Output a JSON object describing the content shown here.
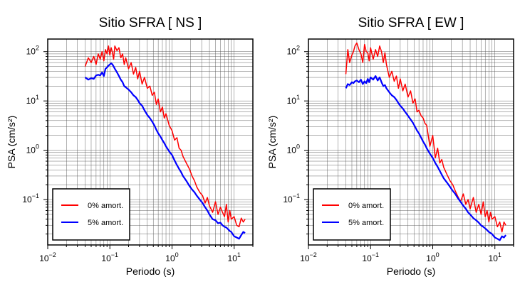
{
  "chart_data": [
    {
      "type": "line",
      "title": "Sitio SFRA [ NS ]",
      "xlabel": "Periodo (s)",
      "ylabel": "PSA (cm/s²)",
      "xscale": "log",
      "yscale": "log",
      "xlim": [
        0.01,
        20
      ],
      "ylim": [
        0.012,
        180
      ],
      "xticks": [
        {
          "value": 0.01,
          "base": "10",
          "exp": "−2"
        },
        {
          "value": 0.1,
          "base": "10",
          "exp": "−1"
        },
        {
          "value": 1,
          "base": "10",
          "exp": "0"
        },
        {
          "value": 10,
          "base": "10",
          "exp": "1"
        }
      ],
      "yticks": [
        {
          "value": 0.1,
          "base": "10",
          "exp": "−1"
        },
        {
          "value": 1,
          "base": "10",
          "exp": "0"
        },
        {
          "value": 10,
          "base": "10",
          "exp": "1"
        },
        {
          "value": 100,
          "base": "10",
          "exp": "2"
        }
      ],
      "grid": true,
      "legend_position": "bottom-left",
      "series": [
        {
          "name": "0% amort.",
          "color": "#ff0000",
          "x": [
            0.04,
            0.045,
            0.05,
            0.055,
            0.06,
            0.065,
            0.07,
            0.075,
            0.08,
            0.085,
            0.09,
            0.095,
            0.1,
            0.105,
            0.11,
            0.115,
            0.12,
            0.13,
            0.14,
            0.15,
            0.16,
            0.17,
            0.18,
            0.2,
            0.22,
            0.24,
            0.26,
            0.28,
            0.3,
            0.33,
            0.36,
            0.4,
            0.44,
            0.48,
            0.52,
            0.56,
            0.6,
            0.65,
            0.7,
            0.75,
            0.8,
            0.9,
            1.0,
            1.1,
            1.2,
            1.3,
            1.4,
            1.5,
            1.7,
            1.9,
            2.1,
            2.3,
            2.5,
            2.8,
            3.1,
            3.4,
            3.7,
            4.0,
            4.5,
            5.0,
            5.5,
            6.0,
            6.5,
            7.0,
            7.5,
            8.0,
            8.5,
            9.0,
            10.0,
            11.0,
            12.0,
            13.0,
            14.0,
            15.0
          ],
          "y": [
            50,
            75,
            60,
            80,
            55,
            90,
            70,
            100,
            65,
            110,
            90,
            130,
            85,
            120,
            95,
            70,
            130,
            105,
            120,
            75,
            90,
            55,
            75,
            45,
            60,
            35,
            48,
            28,
            40,
            22,
            30,
            18,
            20,
            13,
            15,
            8.5,
            11,
            6,
            7.5,
            4.5,
            5.5,
            3.2,
            2.5,
            1.6,
            1.8,
            1.1,
            1.0,
            0.75,
            0.55,
            0.42,
            0.3,
            0.24,
            0.18,
            0.14,
            0.12,
            0.085,
            0.11,
            0.075,
            0.055,
            0.09,
            0.05,
            0.07,
            0.055,
            0.045,
            0.08,
            0.035,
            0.06,
            0.04,
            0.045,
            0.03,
            0.028,
            0.042,
            0.035,
            0.04
          ]
        },
        {
          "name": "5% amort.",
          "color": "#0000ff",
          "x": [
            0.04,
            0.045,
            0.05,
            0.055,
            0.06,
            0.065,
            0.07,
            0.075,
            0.08,
            0.085,
            0.09,
            0.095,
            0.1,
            0.105,
            0.11,
            0.115,
            0.12,
            0.13,
            0.14,
            0.15,
            0.16,
            0.17,
            0.18,
            0.2,
            0.22,
            0.24,
            0.26,
            0.28,
            0.3,
            0.33,
            0.36,
            0.4,
            0.44,
            0.48,
            0.52,
            0.56,
            0.6,
            0.65,
            0.7,
            0.75,
            0.8,
            0.9,
            1.0,
            1.1,
            1.2,
            1.3,
            1.4,
            1.5,
            1.7,
            1.9,
            2.1,
            2.3,
            2.5,
            2.8,
            3.1,
            3.4,
            3.7,
            4.0,
            4.5,
            5.0,
            5.5,
            6.0,
            6.5,
            7.0,
            7.5,
            8.0,
            8.5,
            9.0,
            10.0,
            11.0,
            12.0,
            13.0,
            14.0,
            15.0
          ],
          "y": [
            30,
            27,
            29,
            28,
            33,
            34,
            33,
            38,
            32,
            45,
            48,
            52,
            55,
            58,
            55,
            50,
            45,
            38,
            32,
            27,
            24,
            20,
            19,
            17,
            15,
            13,
            12,
            10.5,
            9,
            8,
            6.5,
            5.2,
            4.5,
            3.8,
            3.2,
            2.6,
            2.2,
            1.9,
            1.6,
            1.4,
            1.2,
            0.95,
            0.8,
            0.62,
            0.5,
            0.42,
            0.36,
            0.3,
            0.24,
            0.19,
            0.16,
            0.14,
            0.12,
            0.1,
            0.085,
            0.07,
            0.06,
            0.05,
            0.04,
            0.038,
            0.033,
            0.034,
            0.03,
            0.028,
            0.027,
            0.025,
            0.023,
            0.022,
            0.018,
            0.017,
            0.016,
            0.019,
            0.022,
            0.021
          ]
        }
      ]
    },
    {
      "type": "line",
      "title": "Sitio SFRA [ EW ]",
      "xlabel": "Periodo (s)",
      "ylabel": "PSA (cm/s²)",
      "xscale": "log",
      "yscale": "log",
      "xlim": [
        0.01,
        20
      ],
      "ylim": [
        0.012,
        180
      ],
      "xticks": [
        {
          "value": 0.01,
          "base": "10",
          "exp": "−2"
        },
        {
          "value": 0.1,
          "base": "10",
          "exp": "−1"
        },
        {
          "value": 1,
          "base": "10",
          "exp": "0"
        },
        {
          "value": 10,
          "base": "10",
          "exp": "1"
        }
      ],
      "yticks": [
        {
          "value": 0.1,
          "base": "10",
          "exp": "−1"
        },
        {
          "value": 1,
          "base": "10",
          "exp": "0"
        },
        {
          "value": 10,
          "base": "10",
          "exp": "1"
        },
        {
          "value": 100,
          "base": "10",
          "exp": "2"
        }
      ],
      "grid": true,
      "legend_position": "bottom-left",
      "series": [
        {
          "name": "0% amort.",
          "color": "#ff0000",
          "x": [
            0.04,
            0.043,
            0.046,
            0.05,
            0.053,
            0.056,
            0.06,
            0.065,
            0.07,
            0.075,
            0.08,
            0.085,
            0.09,
            0.095,
            0.1,
            0.11,
            0.12,
            0.13,
            0.14,
            0.15,
            0.16,
            0.17,
            0.18,
            0.2,
            0.22,
            0.24,
            0.26,
            0.28,
            0.3,
            0.33,
            0.36,
            0.4,
            0.44,
            0.48,
            0.52,
            0.56,
            0.6,
            0.65,
            0.7,
            0.75,
            0.8,
            0.9,
            1.0,
            1.1,
            1.2,
            1.3,
            1.4,
            1.5,
            1.7,
            1.9,
            2.1,
            2.3,
            2.5,
            2.8,
            3.1,
            3.4,
            3.7,
            4.0,
            4.5,
            5.0,
            5.5,
            6.0,
            6.5,
            7.0,
            7.5,
            8.0,
            8.5,
            9.0,
            10.0,
            11.0,
            12.0,
            13.0,
            14.0,
            15.0
          ],
          "y": [
            35,
            110,
            60,
            85,
            100,
            130,
            150,
            110,
            90,
            60,
            140,
            100,
            95,
            65,
            120,
            70,
            110,
            80,
            130,
            100,
            60,
            95,
            55,
            30,
            40,
            25,
            32,
            18,
            28,
            16,
            22,
            12,
            16,
            9,
            11,
            6,
            6.5,
            5,
            4.5,
            3.5,
            3.2,
            1.2,
            2.0,
            0.7,
            1.1,
            0.55,
            0.65,
            0.45,
            0.32,
            0.24,
            0.2,
            0.15,
            0.12,
            0.09,
            0.13,
            0.08,
            0.1,
            0.065,
            0.11,
            0.055,
            0.08,
            0.05,
            0.09,
            0.045,
            0.06,
            0.035,
            0.055,
            0.04,
            0.045,
            0.028,
            0.035,
            0.022,
            0.035,
            0.03
          ]
        },
        {
          "name": "5% amort.",
          "color": "#0000ff",
          "x": [
            0.04,
            0.043,
            0.046,
            0.05,
            0.053,
            0.056,
            0.06,
            0.065,
            0.07,
            0.075,
            0.08,
            0.085,
            0.09,
            0.095,
            0.1,
            0.11,
            0.12,
            0.13,
            0.14,
            0.15,
            0.16,
            0.17,
            0.18,
            0.2,
            0.22,
            0.24,
            0.26,
            0.28,
            0.3,
            0.33,
            0.36,
            0.4,
            0.44,
            0.48,
            0.52,
            0.56,
            0.6,
            0.65,
            0.7,
            0.75,
            0.8,
            0.9,
            1.0,
            1.1,
            1.2,
            1.3,
            1.4,
            1.5,
            1.7,
            1.9,
            2.1,
            2.3,
            2.5,
            2.8,
            3.1,
            3.4,
            3.7,
            4.0,
            4.5,
            5.0,
            5.5,
            6.0,
            6.5,
            7.0,
            7.5,
            8.0,
            8.5,
            9.0,
            10.0,
            11.0,
            12.0,
            13.0,
            14.0,
            15.0
          ],
          "y": [
            18,
            22,
            21,
            24,
            23,
            25,
            26,
            24,
            27,
            22,
            25,
            23,
            28,
            24,
            30,
            27,
            32,
            26,
            30,
            24,
            20,
            21,
            18,
            15,
            13,
            12,
            10.5,
            9,
            8,
            7,
            6,
            5,
            4.2,
            3.6,
            3.0,
            2.5,
            2.2,
            1.8,
            1.5,
            1.3,
            1.1,
            0.85,
            0.7,
            0.55,
            0.46,
            0.38,
            0.32,
            0.27,
            0.22,
            0.18,
            0.15,
            0.13,
            0.11,
            0.09,
            0.075,
            0.065,
            0.055,
            0.05,
            0.042,
            0.038,
            0.034,
            0.03,
            0.028,
            0.026,
            0.024,
            0.022,
            0.021,
            0.02,
            0.017,
            0.016,
            0.015,
            0.018,
            0.017,
            0.019
          ]
        }
      ]
    }
  ]
}
